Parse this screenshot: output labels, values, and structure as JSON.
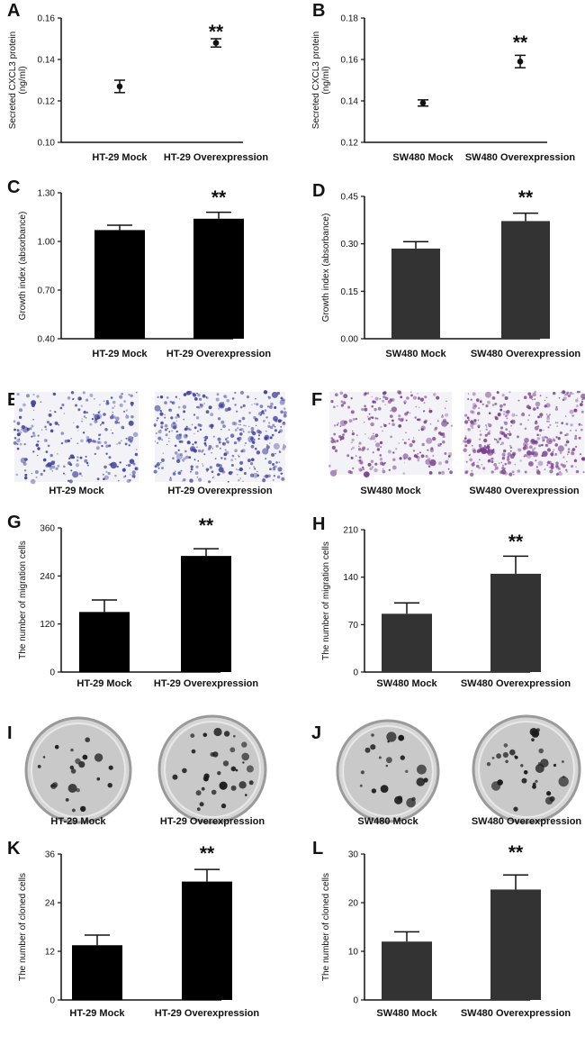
{
  "chart_data": [
    {
      "id": "A",
      "label": "A",
      "type": "scatter",
      "categories": [
        "HT-29 Mock",
        "HT-29 Overexpression"
      ],
      "values": [
        0.127,
        0.148
      ],
      "errors": [
        0.003,
        0.002
      ],
      "ylabel": [
        "Secreted CXCL3 protein",
        "(ng/ml)"
      ],
      "ylim": [
        0.1,
        0.16
      ],
      "ticks": [
        "0.10",
        "0.12",
        "0.14",
        "0.16"
      ],
      "sig": [
        "",
        "**"
      ]
    },
    {
      "id": "B",
      "label": "B",
      "type": "scatter",
      "categories": [
        "SW480 Mock",
        "SW480 Overexpression"
      ],
      "values": [
        0.139,
        0.159
      ],
      "errors": [
        0.0015,
        0.003
      ],
      "ylabel": [
        "Secreted CXCL3 protein",
        "(ng/ml)"
      ],
      "ylim": [
        0.12,
        0.18
      ],
      "ticks": [
        "0.12",
        "0.14",
        "0.16",
        "0.18"
      ],
      "sig": [
        "",
        "**"
      ]
    },
    {
      "id": "C",
      "label": "C",
      "type": "bar",
      "color": "#000000",
      "categories": [
        "HT-29 Mock",
        "HT-29 Overexpression"
      ],
      "values": [
        1.07,
        1.14
      ],
      "errors": [
        0.03,
        0.04
      ],
      "ylabel": [
        "Growth index (absorbance)"
      ],
      "ylim": [
        0.4,
        1.3
      ],
      "ticks": [
        "0.40",
        "0.70",
        "1.00",
        "1.30"
      ],
      "sig": [
        "",
        "**"
      ]
    },
    {
      "id": "D",
      "label": "D",
      "type": "bar",
      "color": "#333333",
      "categories": [
        "SW480 Mock",
        "SW480 Overexpression"
      ],
      "values": [
        0.285,
        0.372
      ],
      "errors": [
        0.022,
        0.025
      ],
      "ylabel": [
        "Growth index (absorbance)"
      ],
      "ylim": [
        0,
        0.45
      ],
      "ticks": [
        "0.00",
        "0.15",
        "0.30",
        "0.45"
      ],
      "sig": [
        "",
        "**"
      ]
    },
    {
      "id": "G",
      "label": "G",
      "type": "bar",
      "color": "#000000",
      "categories": [
        "HT-29 Mock",
        "HT-29 Overexpression"
      ],
      "values": [
        150,
        290
      ],
      "errors": [
        30,
        18
      ],
      "ylabel": [
        "The number of migration cells"
      ],
      "ylim": [
        0,
        360
      ],
      "ticks": [
        "0",
        "120",
        "240",
        "360"
      ],
      "sig": [
        "",
        "**"
      ]
    },
    {
      "id": "H",
      "label": "H",
      "type": "bar",
      "color": "#333333",
      "categories": [
        "SW480 Mock",
        "SW480 Overexpression"
      ],
      "values": [
        86,
        145
      ],
      "errors": [
        16,
        26
      ],
      "ylabel": [
        "The number of migration cells"
      ],
      "ylim": [
        0,
        210
      ],
      "ticks": [
        "0",
        "70",
        "140",
        "210"
      ],
      "sig": [
        "",
        "**"
      ]
    },
    {
      "id": "K",
      "label": "K",
      "type": "bar",
      "color": "#000000",
      "categories": [
        "HT-29 Mock",
        "HT-29 Overexpression"
      ],
      "values": [
        13.5,
        29.2
      ],
      "errors": [
        2.5,
        3
      ],
      "ylabel": [
        "The number of cloned cells"
      ],
      "ylim": [
        0,
        36
      ],
      "ticks": [
        "0",
        "12",
        "24",
        "36"
      ],
      "sig": [
        "",
        "**"
      ]
    },
    {
      "id": "L",
      "label": "L",
      "type": "bar",
      "color": "#333333",
      "categories": [
        "SW480 Mock",
        "SW480 Overexpression"
      ],
      "values": [
        12,
        22.7
      ],
      "errors": [
        2,
        3
      ],
      "ylabel": [
        "The number of cloned cells"
      ],
      "ylim": [
        0,
        30
      ],
      "ticks": [
        "0",
        "10",
        "20",
        "30"
      ],
      "sig": [
        "",
        "**"
      ]
    }
  ],
  "image_panels": [
    {
      "id": "E",
      "label": "E",
      "kind": "stained",
      "color": "#3c3f9c",
      "captions": [
        "HT-29 Mock",
        "HT-29 Overexpression"
      ]
    },
    {
      "id": "F",
      "label": "F",
      "kind": "stained",
      "color": "#7a3f8e",
      "captions": [
        "SW480 Mock",
        "SW480 Overexpression"
      ]
    },
    {
      "id": "I",
      "label": "I",
      "kind": "dish",
      "color": "#1a1a1a",
      "captions": [
        "HT-29 Mock",
        "HT-29 Overexpression"
      ]
    },
    {
      "id": "J",
      "label": "J",
      "kind": "dish",
      "color": "#1a1a1a",
      "captions": [
        "SW480 Mock",
        "SW480 Overexpression"
      ]
    }
  ]
}
